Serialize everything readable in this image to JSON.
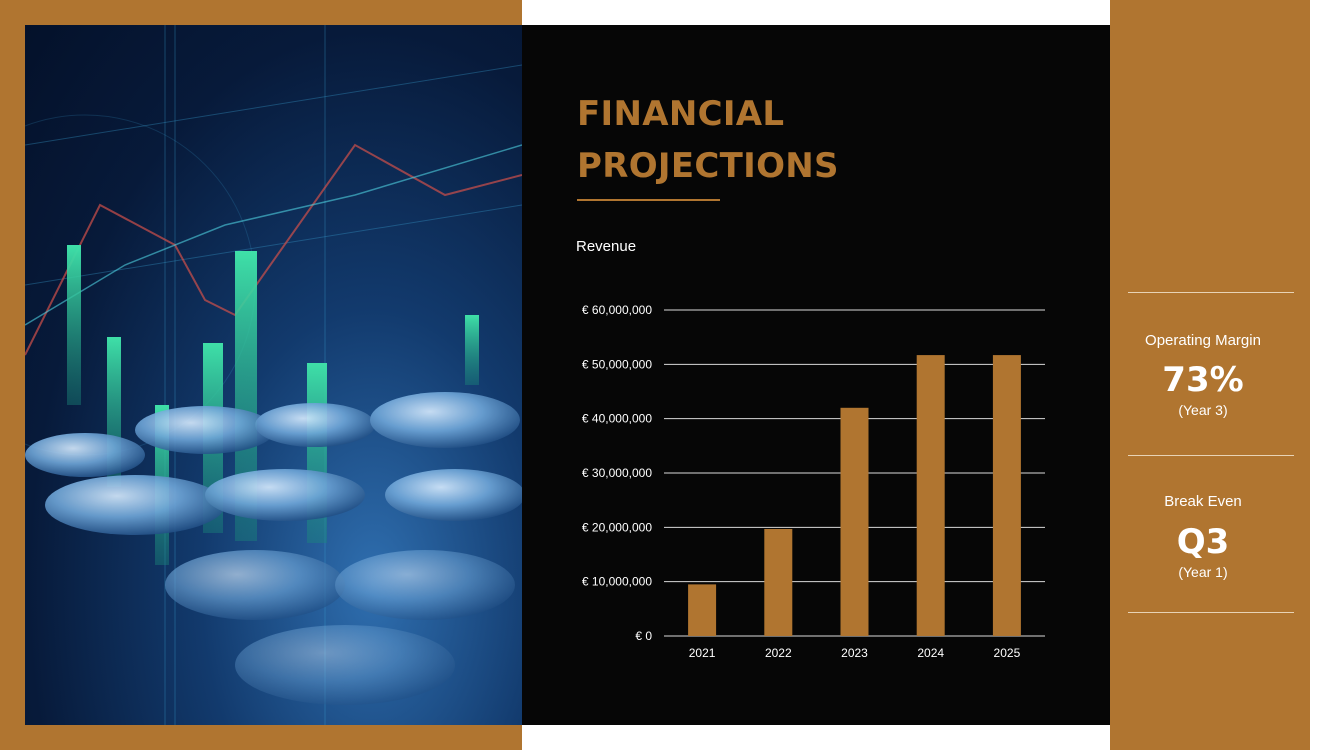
{
  "slide": {
    "title_line1": "FINANCIAL",
    "title_line2": "PROJECTIONS",
    "colors": {
      "accent": "#B07530",
      "panel": "#060606",
      "text": "#FFFFFF"
    }
  },
  "chart_data": {
    "type": "bar",
    "title": "Revenue",
    "categories": [
      "2021",
      "2022",
      "2023",
      "2024",
      "2025"
    ],
    "values": [
      9500000,
      19700000,
      42000000,
      51700000,
      51700000
    ],
    "ylim": [
      0,
      60000000
    ],
    "yticks": [
      0,
      10000000,
      20000000,
      30000000,
      40000000,
      50000000,
      60000000
    ],
    "ytick_labels": [
      "€ 0",
      "€ 10,000,000",
      "€ 20,000,000",
      "€ 30,000,000",
      "€ 40,000,000",
      "€ 50,000,000",
      "€ 60,000,000"
    ],
    "grid": true,
    "bar_color": "#B07530"
  },
  "stats": {
    "operating_margin": {
      "label": "Operating Margin",
      "value": "73%",
      "note": "(Year 3)"
    },
    "break_even": {
      "label": "Break Even",
      "value": "Q3",
      "note": "(Year 1)"
    }
  }
}
